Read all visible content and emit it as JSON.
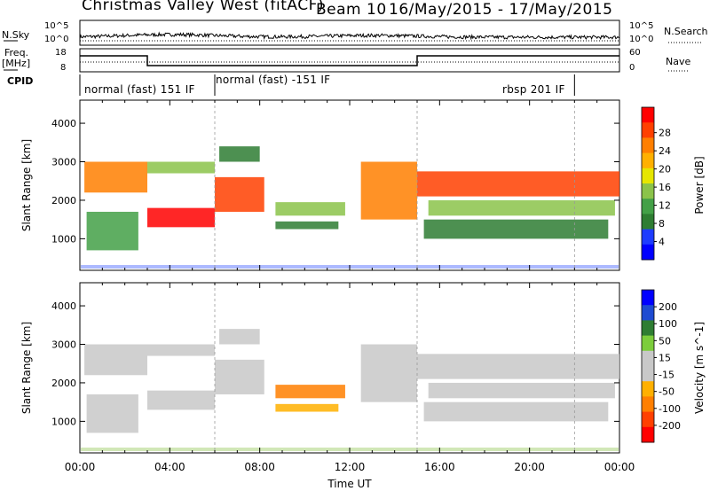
{
  "header": {
    "station": "Christmas Valley West (fitACF)",
    "beam": "Beam 10",
    "date_range": "16/May/2015 - 17/May/2015"
  },
  "side_labels": {
    "nsky": "N.Sky",
    "freq": "Freq.",
    "freq_unit": "[MHz]",
    "cpid": "CPID",
    "nsearch": "N.Search",
    "nave": "Nave"
  },
  "noise_panel": {
    "left_ticks": [
      "10^5",
      "10^0"
    ],
    "right_ticks": [
      "10^5",
      "10^0"
    ]
  },
  "freq_panel": {
    "left_ticks": [
      "18",
      "8"
    ],
    "right_ticks": [
      "60",
      "0"
    ]
  },
  "cpid_modes": [
    {
      "label": "normal (fast) 151 IF",
      "start_hour": 0
    },
    {
      "label": "normal (fast) -151 IF",
      "start_hour": 6
    },
    {
      "label": "rbsp 201 IF",
      "start_hour": 15
    }
  ],
  "colors": {
    "power_scale": [
      "#0000ff",
      "#1e3cff",
      "#2e7d32",
      "#43a047",
      "#8bc34a",
      "#e6e600",
      "#ffb000",
      "#ff7f00",
      "#ff4000",
      "#ff0000"
    ],
    "velocity_scale": [
      "#0000ff",
      "#1e4bd2",
      "#2e7d32",
      "#7ccd3c",
      "#c8c8c8",
      "#c8c8c8",
      "#ffb000",
      "#ff7f00",
      "#ff4000",
      "#ff0000"
    ]
  },
  "chart_data": [
    {
      "type": "heatmap",
      "panel": "power",
      "ylabel": "Slant Range [km]",
      "ylim": [
        180,
        4600
      ],
      "yticks": [
        "1000",
        "2000",
        "3000",
        "4000"
      ],
      "xlim_hours": [
        0,
        24
      ],
      "colorbar_label": "Power [dB]",
      "colorbar_ticks": [
        "4",
        "8",
        "12",
        "16",
        "20",
        "24",
        "28"
      ],
      "echo_bands": [
        {
          "t0": 0.2,
          "t1": 3.0,
          "r0": 2200,
          "r1": 3000,
          "value": 22
        },
        {
          "t0": 0.3,
          "t1": 2.6,
          "r0": 700,
          "r1": 1700,
          "value": 10
        },
        {
          "t0": 3.0,
          "t1": 6.0,
          "r0": 1300,
          "r1": 1800,
          "value": 27
        },
        {
          "t0": 6.0,
          "t1": 8.2,
          "r0": 1700,
          "r1": 2600,
          "value": 24
        },
        {
          "t0": 3.0,
          "t1": 6.0,
          "r0": 2700,
          "r1": 3000,
          "value": 14
        },
        {
          "t0": 6.2,
          "t1": 8.0,
          "r0": 3000,
          "r1": 3400,
          "value": 8
        },
        {
          "t0": 8.7,
          "t1": 11.8,
          "r0": 1600,
          "r1": 1950,
          "value": 13
        },
        {
          "t0": 8.7,
          "t1": 11.5,
          "r0": 1250,
          "r1": 1450,
          "value": 8
        },
        {
          "t0": 12.5,
          "t1": 15.0,
          "r0": 1500,
          "r1": 3000,
          "value": 23
        },
        {
          "t0": 15.0,
          "t1": 24.0,
          "r0": 2100,
          "r1": 2750,
          "value": 24
        },
        {
          "t0": 15.5,
          "t1": 23.8,
          "r0": 1600,
          "r1": 2000,
          "value": 13
        },
        {
          "t0": 15.3,
          "t1": 23.5,
          "r0": 1000,
          "r1": 1500,
          "value": 7
        }
      ]
    },
    {
      "type": "heatmap",
      "panel": "velocity",
      "ylabel": "Slant Range [km]",
      "ylim": [
        180,
        4600
      ],
      "yticks": [
        "1000",
        "2000",
        "3000",
        "4000"
      ],
      "xlim_hours": [
        0,
        24
      ],
      "xlabel": "Time UT",
      "xticks": [
        "00:00",
        "04:00",
        "08:00",
        "12:00",
        "16:00",
        "20:00",
        "00:00"
      ],
      "colorbar_label": "Velocity [m s^-1]",
      "colorbar_ticks": [
        "200",
        "100",
        "50",
        "15",
        "-15",
        "-50",
        "-100",
        "-200"
      ],
      "echo_bands": [
        {
          "t0": 0.2,
          "t1": 3.0,
          "r0": 2200,
          "r1": 3000,
          "value": 0
        },
        {
          "t0": 0.3,
          "t1": 2.6,
          "r0": 700,
          "r1": 1700,
          "value": 0
        },
        {
          "t0": 3.0,
          "t1": 6.0,
          "r0": 1300,
          "r1": 1800,
          "value": 0
        },
        {
          "t0": 6.0,
          "t1": 8.2,
          "r0": 1700,
          "r1": 2600,
          "value": -20
        },
        {
          "t0": 3.0,
          "t1": 6.0,
          "r0": 2700,
          "r1": 3000,
          "value": -40
        },
        {
          "t0": 6.2,
          "t1": 8.0,
          "r0": 3000,
          "r1": 3400,
          "value": -40
        },
        {
          "t0": 8.7,
          "t1": 11.8,
          "r0": 1600,
          "r1": 1950,
          "value": -120
        },
        {
          "t0": 8.7,
          "t1": 11.5,
          "r0": 1250,
          "r1": 1450,
          "value": -60
        },
        {
          "t0": 12.5,
          "t1": 15.0,
          "r0": 1500,
          "r1": 3000,
          "value": 40
        },
        {
          "t0": 15.0,
          "t1": 24.0,
          "r0": 2100,
          "r1": 2750,
          "value": 0
        },
        {
          "t0": 15.5,
          "t1": 23.8,
          "r0": 1600,
          "r1": 2000,
          "value": 0
        },
        {
          "t0": 15.3,
          "t1": 23.5,
          "r0": 1000,
          "r1": 1500,
          "value": 0
        }
      ]
    }
  ]
}
